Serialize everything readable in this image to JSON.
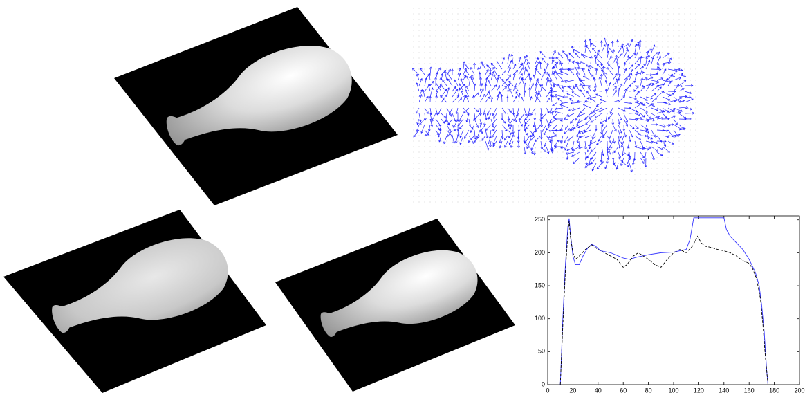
{
  "chart_data": {
    "type": "line",
    "xlim": [
      0,
      200
    ],
    "xticks": [
      0,
      20,
      40,
      60,
      80,
      100,
      120,
      140,
      160,
      180,
      200
    ],
    "ylim": [
      0,
      256
    ],
    "yticks": [
      0,
      50,
      100,
      150,
      200,
      250
    ],
    "series": [
      {
        "color": "#3333ff",
        "dash": false,
        "x": [
          10,
          12,
          14,
          16,
          17,
          18,
          20,
          22,
          25,
          28,
          32,
          35,
          38,
          42,
          50,
          60,
          65,
          70,
          80,
          90,
          100,
          110,
          113,
          116,
          120,
          130,
          140,
          142,
          145,
          150,
          155,
          160,
          165,
          168,
          170,
          172,
          174,
          175
        ],
        "values": [
          0,
          100,
          180,
          240,
          252,
          230,
          195,
          182,
          182,
          195,
          208,
          213,
          210,
          203,
          200,
          192,
          190,
          193,
          197,
          200,
          201,
          205,
          220,
          253,
          253,
          253,
          253,
          235,
          225,
          215,
          205,
          190,
          170,
          150,
          120,
          80,
          20,
          0
        ]
      },
      {
        "color": "#000000",
        "dash": true,
        "x": [
          10,
          12,
          14,
          16,
          17,
          18,
          20,
          22,
          25,
          30,
          35,
          40,
          45,
          50,
          55,
          60,
          63,
          68,
          72,
          76,
          80,
          85,
          90,
          95,
          100,
          105,
          110,
          115,
          119,
          122,
          125,
          130,
          135,
          140,
          145,
          150,
          155,
          160,
          163,
          166,
          169,
          171,
          173,
          175
        ],
        "values": [
          0,
          90,
          170,
          230,
          248,
          225,
          200,
          190,
          195,
          205,
          212,
          205,
          200,
          195,
          190,
          178,
          182,
          195,
          200,
          195,
          190,
          182,
          178,
          190,
          200,
          205,
          200,
          210,
          225,
          215,
          210,
          208,
          205,
          203,
          200,
          195,
          188,
          184,
          175,
          160,
          130,
          90,
          40,
          0
        ]
      }
    ]
  }
}
